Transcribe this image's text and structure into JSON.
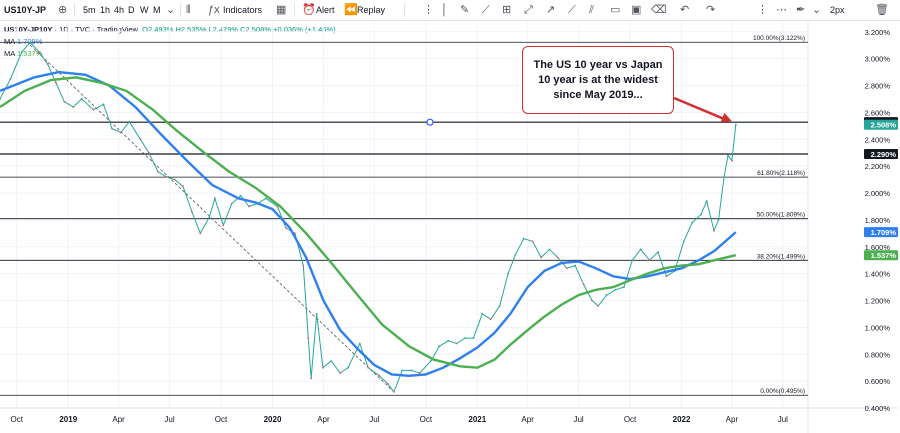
{
  "toolbar": {
    "symbol": "US10Y-JP",
    "intervals": [
      "5m",
      "1h",
      "4h",
      "D",
      "W",
      "M"
    ],
    "indicators_label": "Indicators",
    "alert_label": "Alert",
    "replay_label": "Replay",
    "price_type": "2px"
  },
  "legend": {
    "symbol": "US10Y-JP10Y",
    "interval": "1D",
    "exchange": "TVC",
    "source": "TradingView",
    "ohlc": "O2.493% H2.535% L2.479% C2.508% +0.036% (+1.46%)",
    "ma1_label": "MA",
    "ma1_value": "1.709%",
    "ma2_label": "MA",
    "ma2_value": "1.537%"
  },
  "annotation": {
    "text": "The US 10 year vs Japan 10 year is at the widest since May 2019..."
  },
  "colors": {
    "price": "#26a69a",
    "price_down": "#ef5350",
    "ma_fast": "#2f80ed",
    "ma_slow": "#4caf50",
    "annotation_border": "#d32f2f",
    "hline": "#131722"
  },
  "chart_data": {
    "type": "line",
    "title": "US10Y-JP10Y",
    "yaxis_unit": "%",
    "ylim": [
      0.4,
      3.28
    ],
    "xlim": [
      "2018-09-01",
      "2022-08-15"
    ],
    "yticks": [
      "0.400%",
      "0.600%",
      "0.800%",
      "1.000%",
      "1.200%",
      "1.400%",
      "1.600%",
      "1.800%",
      "2.000%",
      "2.200%",
      "2.400%",
      "2.600%",
      "2.800%",
      "3.000%",
      "3.200%"
    ],
    "xticks": [
      {
        "label": "Oct",
        "date": "2018-10-01",
        "bold": false
      },
      {
        "label": "2019",
        "date": "2019-01-01",
        "bold": true
      },
      {
        "label": "Apr",
        "date": "2019-04-01",
        "bold": false
      },
      {
        "label": "Jul",
        "date": "2019-07-01",
        "bold": false
      },
      {
        "label": "Oct",
        "date": "2019-10-01",
        "bold": false
      },
      {
        "label": "2020",
        "date": "2020-01-01",
        "bold": true
      },
      {
        "label": "Apr",
        "date": "2020-04-01",
        "bold": false
      },
      {
        "label": "Jul",
        "date": "2020-07-01",
        "bold": false
      },
      {
        "label": "Oct",
        "date": "2020-10-01",
        "bold": false
      },
      {
        "label": "2021",
        "date": "2021-01-01",
        "bold": true
      },
      {
        "label": "Apr",
        "date": "2021-04-01",
        "bold": false
      },
      {
        "label": "Jul",
        "date": "2021-07-01",
        "bold": false
      },
      {
        "label": "Oct",
        "date": "2021-10-01",
        "bold": false
      },
      {
        "label": "2022",
        "date": "2022-01-01",
        "bold": true
      },
      {
        "label": "Apr",
        "date": "2022-04-01",
        "bold": false
      },
      {
        "label": "Jul",
        "date": "2022-07-01",
        "bold": false
      }
    ],
    "series": [
      {
        "name": "US10Y-JP10Y",
        "role": "price",
        "points": [
          [
            "2018-09-01",
            2.7
          ],
          [
            "2018-09-20",
            2.85
          ],
          [
            "2018-10-10",
            3.05
          ],
          [
            "2018-10-25",
            3.12
          ],
          [
            "2018-11-10",
            3.05
          ],
          [
            "2018-11-25",
            2.96
          ],
          [
            "2018-12-10",
            2.82
          ],
          [
            "2018-12-25",
            2.68
          ],
          [
            "2019-01-10",
            2.64
          ],
          [
            "2019-01-25",
            2.7
          ],
          [
            "2019-02-15",
            2.62
          ],
          [
            "2019-03-05",
            2.66
          ],
          [
            "2019-03-20",
            2.48
          ],
          [
            "2019-04-05",
            2.45
          ],
          [
            "2019-04-20",
            2.53
          ],
          [
            "2019-05-10",
            2.4
          ],
          [
            "2019-05-25",
            2.3
          ],
          [
            "2019-06-10",
            2.16
          ],
          [
            "2019-06-25",
            2.12
          ],
          [
            "2019-07-10",
            2.1
          ],
          [
            "2019-07-25",
            2.05
          ],
          [
            "2019-08-10",
            1.86
          ],
          [
            "2019-08-25",
            1.7
          ],
          [
            "2019-09-10",
            1.82
          ],
          [
            "2019-09-20",
            1.96
          ],
          [
            "2019-10-05",
            1.76
          ],
          [
            "2019-10-20",
            1.92
          ],
          [
            "2019-11-05",
            1.98
          ],
          [
            "2019-11-20",
            1.9
          ],
          [
            "2019-12-05",
            1.92
          ],
          [
            "2019-12-20",
            1.96
          ],
          [
            "2020-01-10",
            1.9
          ],
          [
            "2020-01-25",
            1.74
          ],
          [
            "2020-02-10",
            1.7
          ],
          [
            "2020-02-25",
            1.46
          ],
          [
            "2020-03-05",
            0.92
          ],
          [
            "2020-03-10",
            0.62
          ],
          [
            "2020-03-20",
            1.1
          ],
          [
            "2020-03-31",
            0.7
          ],
          [
            "2020-04-15",
            0.75
          ],
          [
            "2020-05-01",
            0.66
          ],
          [
            "2020-05-15",
            0.7
          ],
          [
            "2020-06-05",
            0.88
          ],
          [
            "2020-06-20",
            0.7
          ],
          [
            "2020-07-10",
            0.64
          ],
          [
            "2020-07-25",
            0.58
          ],
          [
            "2020-08-05",
            0.52
          ],
          [
            "2020-08-20",
            0.68
          ],
          [
            "2020-09-05",
            0.68
          ],
          [
            "2020-09-20",
            0.66
          ],
          [
            "2020-10-10",
            0.75
          ],
          [
            "2020-10-25",
            0.86
          ],
          [
            "2020-11-10",
            0.9
          ],
          [
            "2020-11-25",
            0.88
          ],
          [
            "2020-12-10",
            0.92
          ],
          [
            "2020-12-25",
            0.92
          ],
          [
            "2021-01-10",
            1.1
          ],
          [
            "2021-01-25",
            1.06
          ],
          [
            "2021-02-10",
            1.16
          ],
          [
            "2021-02-25",
            1.4
          ],
          [
            "2021-03-10",
            1.54
          ],
          [
            "2021-03-25",
            1.66
          ],
          [
            "2021-04-10",
            1.64
          ],
          [
            "2021-04-25",
            1.52
          ],
          [
            "2021-05-10",
            1.58
          ],
          [
            "2021-05-25",
            1.52
          ],
          [
            "2021-06-10",
            1.44
          ],
          [
            "2021-06-25",
            1.46
          ],
          [
            "2021-07-10",
            1.32
          ],
          [
            "2021-07-25",
            1.2
          ],
          [
            "2021-08-05",
            1.16
          ],
          [
            "2021-08-20",
            1.24
          ],
          [
            "2021-09-05",
            1.28
          ],
          [
            "2021-09-20",
            1.3
          ],
          [
            "2021-10-05",
            1.5
          ],
          [
            "2021-10-20",
            1.58
          ],
          [
            "2021-11-05",
            1.5
          ],
          [
            "2021-11-20",
            1.56
          ],
          [
            "2021-12-05",
            1.38
          ],
          [
            "2021-12-20",
            1.42
          ],
          [
            "2022-01-05",
            1.64
          ],
          [
            "2022-01-20",
            1.78
          ],
          [
            "2022-02-05",
            1.84
          ],
          [
            "2022-02-15",
            1.94
          ],
          [
            "2022-02-28",
            1.72
          ],
          [
            "2022-03-08",
            1.8
          ],
          [
            "2022-03-18",
            2.12
          ],
          [
            "2022-03-25",
            2.28
          ],
          [
            "2022-04-01",
            2.24
          ],
          [
            "2022-04-08",
            2.508
          ]
        ]
      },
      {
        "name": "MA 1.709%",
        "role": "ma",
        "points": [
          [
            "2018-09-01",
            2.76
          ],
          [
            "2018-11-01",
            2.86
          ],
          [
            "2018-12-15",
            2.9
          ],
          [
            "2019-02-01",
            2.88
          ],
          [
            "2019-03-15",
            2.8
          ],
          [
            "2019-05-01",
            2.64
          ],
          [
            "2019-06-15",
            2.44
          ],
          [
            "2019-08-01",
            2.24
          ],
          [
            "2019-09-15",
            2.06
          ],
          [
            "2019-11-01",
            1.96
          ],
          [
            "2019-12-01",
            1.93
          ],
          [
            "2020-01-01",
            1.88
          ],
          [
            "2020-02-01",
            1.74
          ],
          [
            "2020-03-01",
            1.52
          ],
          [
            "2020-04-01",
            1.2
          ],
          [
            "2020-05-01",
            0.98
          ],
          [
            "2020-06-01",
            0.84
          ],
          [
            "2020-07-01",
            0.72
          ],
          [
            "2020-08-01",
            0.65
          ],
          [
            "2020-09-01",
            0.64
          ],
          [
            "2020-10-01",
            0.65
          ],
          [
            "2020-11-01",
            0.7
          ],
          [
            "2020-12-01",
            0.77
          ],
          [
            "2021-01-01",
            0.85
          ],
          [
            "2021-02-01",
            0.96
          ],
          [
            "2021-03-01",
            1.1
          ],
          [
            "2021-04-01",
            1.3
          ],
          [
            "2021-05-01",
            1.42
          ],
          [
            "2021-06-01",
            1.48
          ],
          [
            "2021-07-01",
            1.49
          ],
          [
            "2021-08-01",
            1.44
          ],
          [
            "2021-09-01",
            1.38
          ],
          [
            "2021-10-01",
            1.36
          ],
          [
            "2021-11-01",
            1.38
          ],
          [
            "2021-12-01",
            1.41
          ],
          [
            "2022-01-01",
            1.44
          ],
          [
            "2022-02-01",
            1.5
          ],
          [
            "2022-03-01",
            1.57
          ],
          [
            "2022-04-08",
            1.709
          ]
        ]
      },
      {
        "name": "MA 1.537%",
        "role": "ma",
        "points": [
          [
            "2018-09-01",
            2.64
          ],
          [
            "2018-10-15",
            2.76
          ],
          [
            "2018-12-01",
            2.84
          ],
          [
            "2019-01-15",
            2.86
          ],
          [
            "2019-03-01",
            2.82
          ],
          [
            "2019-04-15",
            2.76
          ],
          [
            "2019-06-01",
            2.62
          ],
          [
            "2019-07-15",
            2.46
          ],
          [
            "2019-09-01",
            2.3
          ],
          [
            "2019-10-15",
            2.16
          ],
          [
            "2019-12-01",
            2.04
          ],
          [
            "2020-01-15",
            1.9
          ],
          [
            "2020-03-01",
            1.7
          ],
          [
            "2020-04-15",
            1.48
          ],
          [
            "2020-06-01",
            1.24
          ],
          [
            "2020-07-15",
            1.02
          ],
          [
            "2020-09-01",
            0.86
          ],
          [
            "2020-10-15",
            0.76
          ],
          [
            "2020-12-01",
            0.71
          ],
          [
            "2021-01-01",
            0.7
          ],
          [
            "2021-02-01",
            0.76
          ],
          [
            "2021-03-01",
            0.87
          ],
          [
            "2021-04-01",
            0.98
          ],
          [
            "2021-05-01",
            1.08
          ],
          [
            "2021-06-01",
            1.17
          ],
          [
            "2021-07-01",
            1.24
          ],
          [
            "2021-08-01",
            1.28
          ],
          [
            "2021-09-01",
            1.3
          ],
          [
            "2021-10-01",
            1.35
          ],
          [
            "2021-11-01",
            1.4
          ],
          [
            "2021-12-01",
            1.44
          ],
          [
            "2022-01-01",
            1.46
          ],
          [
            "2022-02-01",
            1.47
          ],
          [
            "2022-03-01",
            1.5
          ],
          [
            "2022-04-08",
            1.537
          ]
        ]
      }
    ],
    "horizontal_levels": [
      {
        "value": 3.122,
        "label": "100.00%(3.122%)"
      },
      {
        "value": 2.527,
        "tag": "2.527%"
      },
      {
        "value": 2.29,
        "tag": "2.290%"
      },
      {
        "value": 2.118,
        "label": "61.80%(2.118%)"
      },
      {
        "value": 1.809,
        "label": "50.00%(1.809%)"
      },
      {
        "value": 1.499,
        "label": "38.20%(1.499%)"
      },
      {
        "value": 0.495,
        "label": "0.00%(0.495%)"
      }
    ],
    "value_tags": [
      {
        "value": 2.527,
        "text": "2.527%",
        "bg": "#131722",
        "fg": "#ffffff"
      },
      {
        "value": 2.508,
        "text": "2.508%",
        "bg": "#26a69a",
        "fg": "#ffffff"
      },
      {
        "value": 2.29,
        "text": "2.290%",
        "bg": "#131722",
        "fg": "#ffffff"
      },
      {
        "value": 1.709,
        "text": "1.709%",
        "bg": "#2f80ed",
        "fg": "#ffffff"
      },
      {
        "value": 1.537,
        "text": "1.537%",
        "bg": "#4caf50",
        "fg": "#ffffff"
      }
    ],
    "trendline": [
      [
        "2018-10-25",
        3.1
      ],
      [
        "2020-08-05",
        0.52
      ]
    ]
  }
}
